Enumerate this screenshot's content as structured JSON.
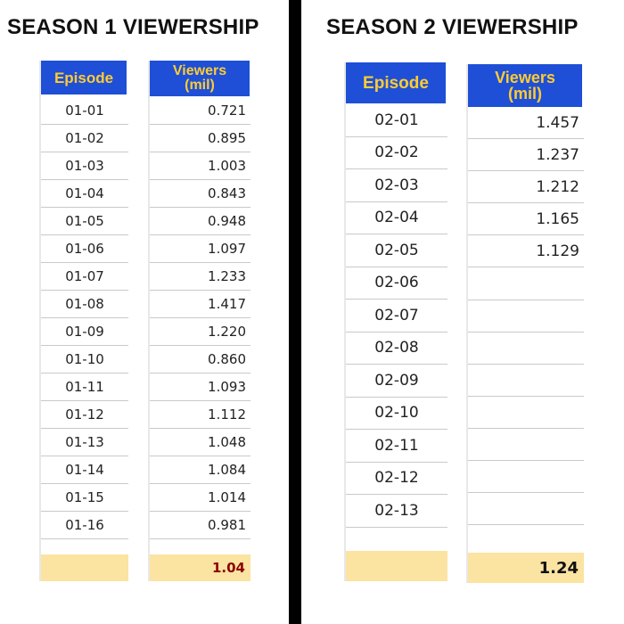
{
  "season1": {
    "title": "SEASON 1 VIEWERSHIP",
    "episode_header": "Episode",
    "viewers_header_line1": "Viewers",
    "viewers_header_line2": "(mil)",
    "rows": [
      {
        "episode": "01-01",
        "viewers": "0.721"
      },
      {
        "episode": "01-02",
        "viewers": "0.895"
      },
      {
        "episode": "01-03",
        "viewers": "1.003"
      },
      {
        "episode": "01-04",
        "viewers": "0.843"
      },
      {
        "episode": "01-05",
        "viewers": "0.948"
      },
      {
        "episode": "01-06",
        "viewers": "1.097"
      },
      {
        "episode": "01-07",
        "viewers": "1.233"
      },
      {
        "episode": "01-08",
        "viewers": "1.417"
      },
      {
        "episode": "01-09",
        "viewers": "1.220"
      },
      {
        "episode": "01-10",
        "viewers": "0.860"
      },
      {
        "episode": "01-11",
        "viewers": "1.093"
      },
      {
        "episode": "01-12",
        "viewers": "1.112"
      },
      {
        "episode": "01-13",
        "viewers": "1.048"
      },
      {
        "episode": "01-14",
        "viewers": "1.084"
      },
      {
        "episode": "01-15",
        "viewers": "1.014"
      },
      {
        "episode": "01-16",
        "viewers": "0.981"
      }
    ],
    "total": "1.04",
    "total_color": "#8b0000"
  },
  "season2": {
    "title": "SEASON 2 VIEWERSHIP",
    "episode_header": "Episode",
    "viewers_header_line1": "Viewers",
    "viewers_header_line2": "(mil)",
    "rows": [
      {
        "episode": "02-01",
        "viewers": "1.457"
      },
      {
        "episode": "02-02",
        "viewers": "1.237"
      },
      {
        "episode": "02-03",
        "viewers": "1.212"
      },
      {
        "episode": "02-04",
        "viewers": "1.165"
      },
      {
        "episode": "02-05",
        "viewers": "1.129"
      },
      {
        "episode": "02-06",
        "viewers": ""
      },
      {
        "episode": "02-07",
        "viewers": ""
      },
      {
        "episode": "02-08",
        "viewers": ""
      },
      {
        "episode": "02-09",
        "viewers": ""
      },
      {
        "episode": "02-10",
        "viewers": ""
      },
      {
        "episode": "02-11",
        "viewers": ""
      },
      {
        "episode": "02-12",
        "viewers": ""
      },
      {
        "episode": "02-13",
        "viewers": ""
      }
    ],
    "total": "1.24",
    "total_color": "#111111"
  },
  "colors": {
    "header_bg": "#1e4fd6",
    "header_text": "#ffcc33",
    "total_bg": "#fbe3a2",
    "divider": "#000000"
  }
}
